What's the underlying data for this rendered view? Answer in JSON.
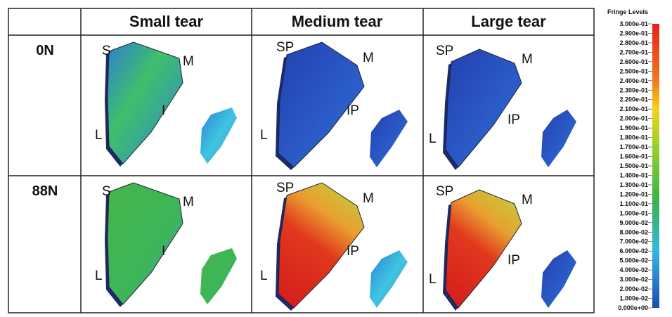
{
  "columns": [
    "Small tear",
    "Medium tear",
    "Large tear"
  ],
  "rows": [
    {
      "label": "0N",
      "cells": [
        [
          "S",
          "M",
          "I",
          "L"
        ],
        [
          "SP",
          "M",
          "IP",
          "L"
        ],
        [
          "SP",
          "M",
          "IP",
          "L"
        ]
      ]
    },
    {
      "label": "88N",
      "cells": [
        [
          "S",
          "M",
          "I",
          "L"
        ],
        [
          "SP",
          "M",
          "IP",
          "L"
        ],
        [
          "SP",
          "M",
          "IP",
          "L"
        ]
      ]
    }
  ],
  "legend": {
    "title": "Fringe Levels",
    "levels": [
      "3.000e-01",
      "2.900e-01",
      "2.800e-01",
      "2.700e-01",
      "2.600e-01",
      "2.500e-01",
      "2.400e-01",
      "2.300e-01",
      "2.200e-01",
      "2.100e-01",
      "2.000e-01",
      "1.900e-01",
      "1.800e-01",
      "1.700e-01",
      "1.600e-01",
      "1.500e-01",
      "1.400e-01",
      "1.300e-01",
      "1.200e-01",
      "1.100e-01",
      "1.000e-01",
      "9.000e-02",
      "8.000e-02",
      "7.000e-02",
      "6.000e-02",
      "5.000e-02",
      "4.000e-02",
      "3.000e-02",
      "2.000e-02",
      "1.000e-02",
      "0.000e+00"
    ]
  }
}
